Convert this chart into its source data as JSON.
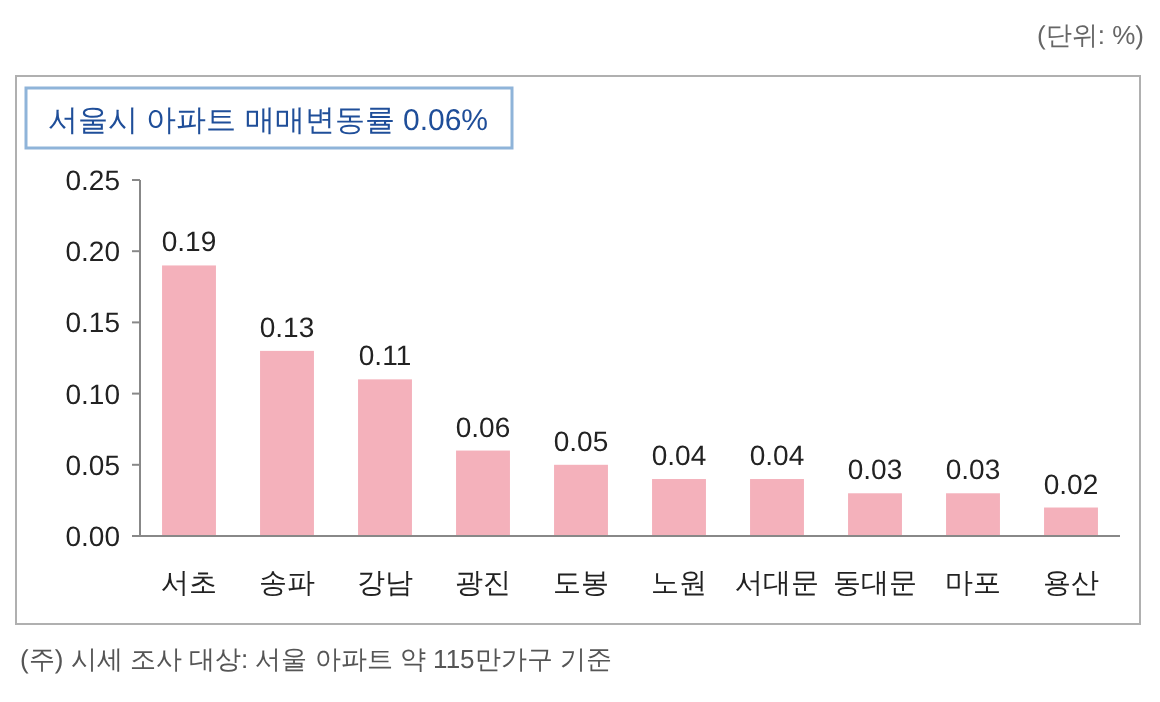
{
  "chart_data": {
    "type": "bar",
    "title": "서울시 아파트 매매변동률 0.06%",
    "categories": [
      "서초",
      "송파",
      "강남",
      "광진",
      "도봉",
      "노원",
      "서대문",
      "동대문",
      "마포",
      "용산"
    ],
    "values": [
      0.19,
      0.13,
      0.11,
      0.06,
      0.05,
      0.04,
      0.04,
      0.03,
      0.03,
      0.02
    ],
    "color": "#f4b1bb",
    "ylim": [
      0,
      0.25
    ],
    "yticks": [
      {
        "value": 0,
        "label": "0.00"
      },
      0.05,
      {
        "value": 0.1,
        "label": "0.10"
      },
      0.15,
      {
        "value": 0.2,
        "label": "0.20"
      },
      0.25
    ],
    "data_labels": true,
    "grid": false,
    "annotations": [
      "(단위: %)",
      "(주) 시세 조사 대상: 서울 아파트 약 115만가구 기준"
    ]
  }
}
